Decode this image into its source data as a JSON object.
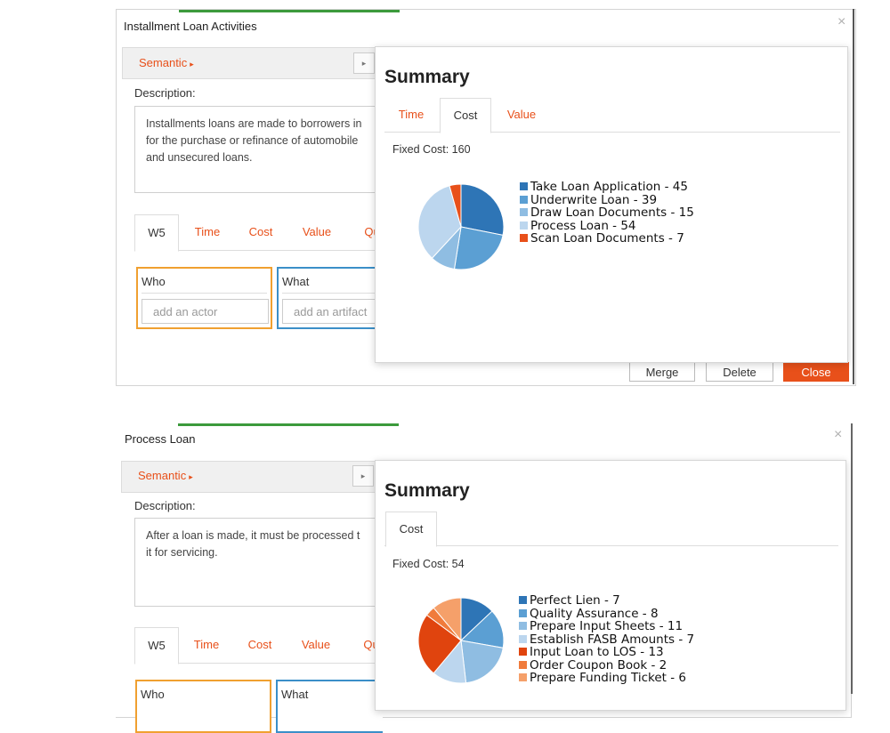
{
  "top": {
    "title": "Installment Loan Activities",
    "close_glyph": "×",
    "semantic_label": "Semantic",
    "semantic_arrow": "▸",
    "description_label": "Description:",
    "description_text": "Installments loans are made to borrowers in\nfor the purchase or refinance of automobile\nand unsecured loans.",
    "tabs": [
      "W5",
      "Time",
      "Cost",
      "Value",
      "Qu"
    ],
    "active_tab": "W5",
    "who_label": "Who",
    "who_placeholder": "add an actor",
    "what_label": "What",
    "what_placeholder": "add an artifact",
    "buttons": {
      "merge": "Merge",
      "delete": "Delete",
      "close": "Close"
    },
    "summary": {
      "title": "Summary",
      "tabs": [
        "Time",
        "Cost",
        "Value"
      ],
      "active_tab": "Cost",
      "fixed_cost_label": "Fixed Cost: 160",
      "legend": [
        "Take Loan Application - 45",
        "Underwrite Loan - 39",
        "Draw Loan Documents - 15",
        "Process Loan - 54",
        "Scan Loan Documents - 7"
      ]
    }
  },
  "bottom": {
    "title": "Process Loan",
    "close_glyph": "×",
    "semantic_label": "Semantic",
    "semantic_arrow": "▸",
    "description_label": "Description:",
    "description_text": "After a loan is made, it must be processed t\nit for servicing.",
    "tabs": [
      "W5",
      "Time",
      "Cost",
      "Value",
      "Qu"
    ],
    "active_tab": "W5",
    "who_label": "Who",
    "what_label": "What",
    "summary": {
      "title": "Summary",
      "tabs": [
        "Cost"
      ],
      "active_tab": "Cost",
      "fixed_cost_label": "Fixed Cost: 54",
      "legend": [
        "Perfect Lien - 7",
        "Quality Assurance - 8",
        "Prepare Input Sheets - 11",
        "Establish FASB Amounts - 7",
        "Input Loan to LOS - 13",
        "Order Coupon Book - 2",
        "Prepare Funding Ticket - 6"
      ]
    }
  },
  "chart_data": [
    {
      "type": "pie",
      "categories": [
        "Take Loan Application",
        "Underwrite Loan",
        "Draw Loan Documents",
        "Process Loan",
        "Scan Loan Documents"
      ],
      "values": [
        45,
        39,
        15,
        54,
        7
      ],
      "colors": [
        "#2e75b6",
        "#5b9fd3",
        "#8fbde2",
        "#bcd6ee",
        "#e8501a"
      ],
      "total": 160
    },
    {
      "type": "pie",
      "categories": [
        "Perfect Lien",
        "Quality Assurance",
        "Prepare Input Sheets",
        "Establish FASB Amounts",
        "Input Loan to LOS",
        "Order Coupon Book",
        "Prepare Funding Ticket"
      ],
      "values": [
        7,
        8,
        11,
        7,
        13,
        2,
        6
      ],
      "colors": [
        "#2e75b6",
        "#5b9fd3",
        "#8fbde2",
        "#bcd6ee",
        "#e0440e",
        "#f07b3c",
        "#f5a06a"
      ],
      "total": 54
    }
  ]
}
